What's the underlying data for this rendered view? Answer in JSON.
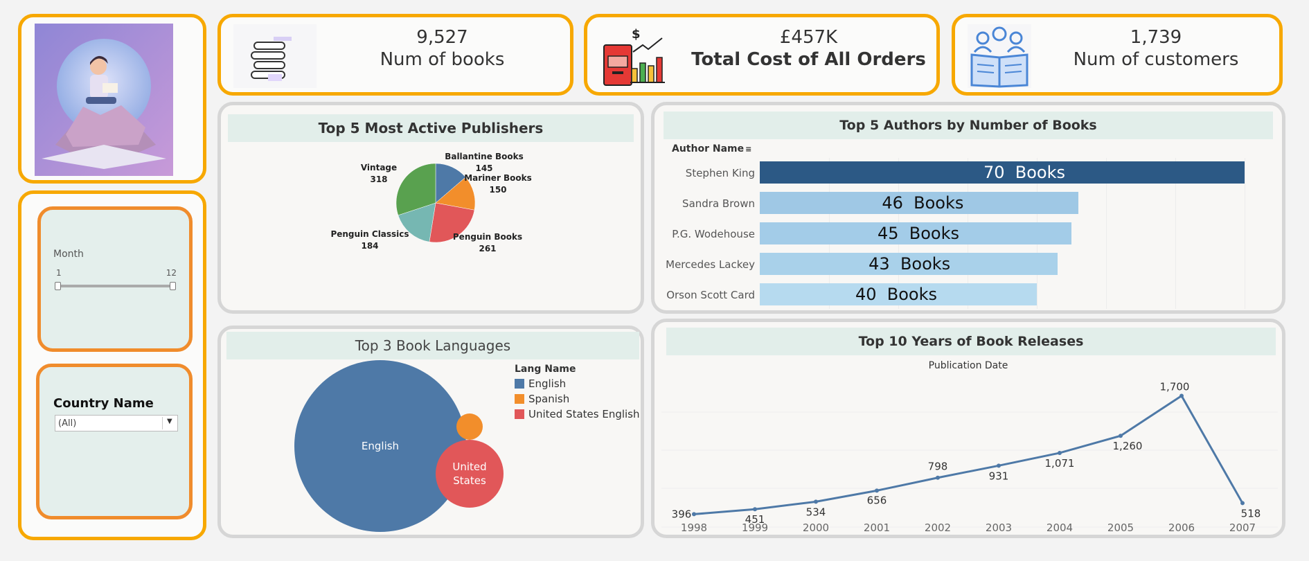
{
  "kpis": {
    "books": {
      "value": "9,527",
      "label": "Num of books"
    },
    "cost": {
      "value": "£457K",
      "label": "Total Cost of All Orders"
    },
    "customers": {
      "value": "1,739",
      "label": "Num of customers"
    }
  },
  "filters": {
    "month": {
      "label": "Month",
      "min": "1",
      "max": "12",
      "range": [
        1,
        12
      ]
    },
    "country": {
      "label": "Country Name",
      "selected": "(All)"
    }
  },
  "publishers": {
    "title": "Top 5 Most Active Publishers",
    "slices": [
      {
        "name": "Ballantine Books",
        "value": "145",
        "color": "#4e79a7"
      },
      {
        "name": "Mariner Books",
        "value": "150",
        "color": "#f28e2b"
      },
      {
        "name": "Penguin Books",
        "value": "261",
        "color": "#e15759"
      },
      {
        "name": "Penguin Classics",
        "value": "184",
        "color": "#76b7b2"
      },
      {
        "name": "Vintage",
        "value": "318",
        "color": "#59a14f"
      }
    ]
  },
  "authors": {
    "title": "Top 5 Authors by Number of Books",
    "column_header": "Author Name",
    "rows": [
      {
        "name": "Stephen King",
        "value": 70,
        "label": "70  Books",
        "color": "#2c5985"
      },
      {
        "name": "Sandra Brown",
        "value": 46,
        "label": "46  Books",
        "color": "#9fc8e5"
      },
      {
        "name": "P.G. Wodehouse",
        "value": 45,
        "label": "45  Books",
        "color": "#a3cce8"
      },
      {
        "name": "Mercedes Lackey",
        "value": 43,
        "label": "43  Books",
        "color": "#a9d1ea"
      },
      {
        "name": "Orson Scott Card",
        "value": 40,
        "label": "40  Books",
        "color": "#b6daef"
      }
    ]
  },
  "languages": {
    "title": "Top 3 Book Languages",
    "legend_title": "Lang Name",
    "items": [
      {
        "name": "English",
        "color": "#4e79a7",
        "bubble_label": "English"
      },
      {
        "name": "Spanish",
        "color": "#f28e2b",
        "bubble_label": ""
      },
      {
        "name": "United States English",
        "color": "#e15759",
        "bubble_label": "United States"
      }
    ]
  },
  "releases": {
    "title": "Top 10 Years of Book Releases",
    "subtitle": "Publication Date"
  },
  "chart_data": {
    "type": "line",
    "x": [
      "1998",
      "1999",
      "2000",
      "2001",
      "2002",
      "2003",
      "2004",
      "2005",
      "2006",
      "2007"
    ],
    "values": [
      396,
      451,
      534,
      656,
      798,
      931,
      1071,
      1260,
      1700,
      518
    ],
    "labels": [
      "396",
      "451",
      "534",
      "656",
      "798",
      "931",
      "1,071",
      "1,260",
      "1,700",
      "518"
    ],
    "title": "Top 10 Years of Book Releases",
    "xlabel": "Publication Date",
    "ylabel": "",
    "ylim": [
      0,
      1800
    ],
    "color": "#4e79a7"
  }
}
